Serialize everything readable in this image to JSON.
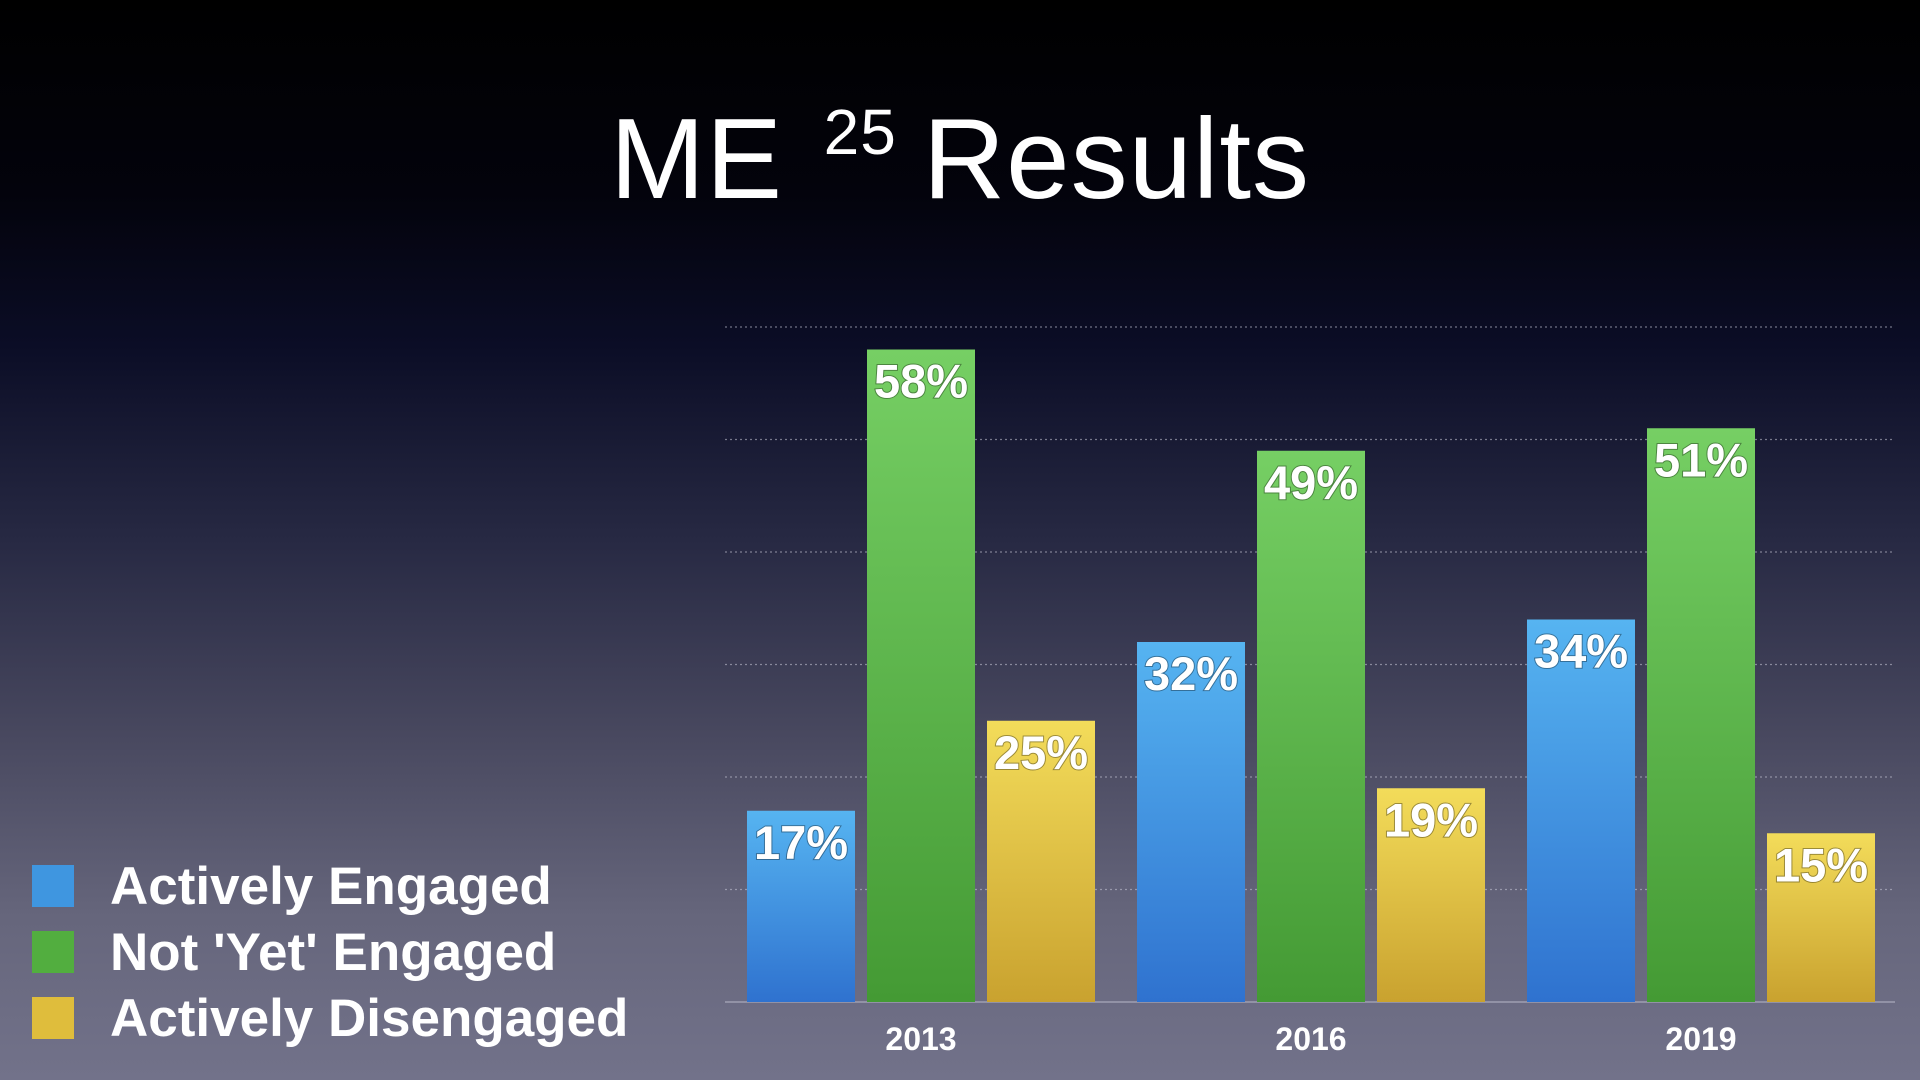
{
  "slide": {
    "title_main": "ME",
    "title_sup": "25",
    "title_rest": "Results"
  },
  "legend": [
    {
      "label": "Actively Engaged",
      "color": "#3f96e0"
    },
    {
      "label": "Not 'Yet' Engaged",
      "color": "#52ae3f"
    },
    {
      "label": "Actively Disengaged",
      "color": "#dfbd3c"
    }
  ],
  "chart_data": {
    "type": "bar",
    "title": "",
    "xlabel": "",
    "ylabel": "",
    "categories": [
      "2013",
      "2016",
      "2019"
    ],
    "series": [
      {
        "name": "Actively Engaged",
        "values": [
          17,
          32,
          34
        ],
        "labels": [
          "17%",
          "32%",
          "34%"
        ],
        "color_top": "#56b4f1",
        "color_bottom": "#2f72cf"
      },
      {
        "name": "Not 'Yet' Engaged",
        "values": [
          58,
          49,
          51
        ],
        "labels": [
          "58%",
          "49%",
          "51%"
        ],
        "color_top": "#76cf64",
        "color_bottom": "#449a34"
      },
      {
        "name": "Actively Disengaged",
        "values": [
          25,
          19,
          15
        ],
        "labels": [
          "25%",
          "19%",
          "15%"
        ],
        "color_top": "#f3dc5a",
        "color_bottom": "#c9a22f"
      }
    ],
    "ylim": [
      0,
      60
    ],
    "grid": true,
    "legend_position": "bottom-left"
  }
}
